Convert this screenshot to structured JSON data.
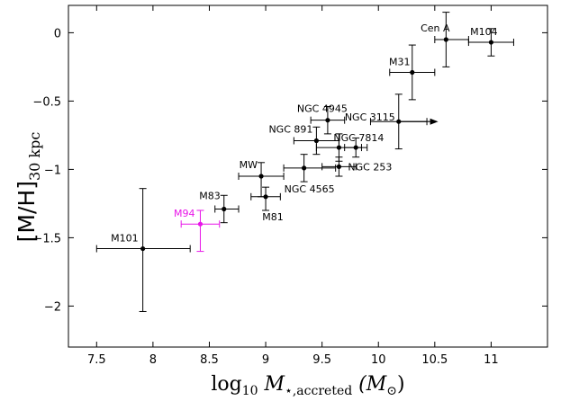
{
  "chart_data": {
    "type": "scatter",
    "title": "",
    "xlabel": {
      "main": "log",
      "sub": "10",
      "mid": " M",
      "star_sub": "⋆,accreted",
      "unit": " (M",
      "unit_sub": "⊙",
      "close": ")"
    },
    "ylabel": {
      "main": "[M/H]",
      "sub": "30 kpc"
    },
    "xlim": [
      7.25,
      11.5
    ],
    "ylim": [
      -2.3,
      0.2
    ],
    "xticks": [
      7.5,
      8,
      8.5,
      9,
      9.5,
      10,
      10.5,
      11
    ],
    "xtick_labels": [
      "7.5",
      "8",
      "8.5",
      "9",
      "9.5",
      "10",
      "10.5",
      "11"
    ],
    "yticks": [
      0,
      -0.5,
      -1,
      -1.5,
      -2
    ],
    "ytick_labels": [
      "0",
      "−0.5",
      "−1",
      "−1.5",
      "−2"
    ],
    "colors": {
      "default": "#000000",
      "highlight": "#e815e8"
    },
    "points": [
      {
        "name": "M101",
        "x": 7.91,
        "y": -1.58,
        "xerr": [
          0.41,
          0.42
        ],
        "yerr": [
          0.46,
          0.44
        ],
        "color": "#000000",
        "label_anchor": "end",
        "label_dx": -5,
        "label_dy": -8
      },
      {
        "name": "M94",
        "x": 8.42,
        "y": -1.4,
        "xerr": [
          0.17,
          0.17
        ],
        "yerr": [
          0.2,
          0.1
        ],
        "color": "#e815e8",
        "label_anchor": "end",
        "label_dx": -6,
        "label_dy": -8
      },
      {
        "name": "M83",
        "x": 8.63,
        "y": -1.29,
        "xerr": [
          0.08,
          0.13
        ],
        "yerr": [
          0.1,
          0.1
        ],
        "color": "#000000",
        "label_anchor": "end",
        "label_dx": -4,
        "label_dy": -11
      },
      {
        "name": "MW",
        "x": 8.96,
        "y": -1.05,
        "xerr": [
          0.2,
          0.2
        ],
        "yerr": [
          0.15,
          0.1
        ],
        "color": "#000000",
        "label_anchor": "end",
        "label_dx": -4,
        "label_dy": -9
      },
      {
        "name": "M81",
        "x": 9.0,
        "y": -1.2,
        "xerr": [
          0.13,
          0.13
        ],
        "yerr": [
          0.1,
          0.07
        ],
        "color": "#000000",
        "label_anchor": "middle",
        "label_dx": 8,
        "label_dy": 26
      },
      {
        "name": "NGC 4565",
        "x": 9.34,
        "y": -0.99,
        "xerr": [
          0.18,
          0.28
        ],
        "yerr": [
          0.1,
          0.1
        ],
        "color": "#000000",
        "label_anchor": "middle",
        "label_dx": 6,
        "label_dy": 27
      },
      {
        "name": "NGC 891",
        "x": 9.45,
        "y": -0.79,
        "xerr": [
          0.2,
          0.2
        ],
        "yerr": [
          0.1,
          0.1
        ],
        "color": "#000000",
        "label_anchor": "end",
        "label_dx": -4,
        "label_dy": -9
      },
      {
        "name": "NGC 4945",
        "x": 9.55,
        "y": -0.64,
        "xerr": [
          0.15,
          0.15
        ],
        "yerr": [
          0.1,
          0.1
        ],
        "color": "#000000",
        "label_anchor": "middle",
        "label_dx": -6,
        "label_dy": -9
      },
      {
        "name": "NGC 253",
        "x": 9.65,
        "y": -0.98,
        "xerr": [
          0.15,
          0.15
        ],
        "yerr": [
          0.07,
          0.07
        ],
        "color": "#000000",
        "label_anchor": "start",
        "label_dx": 10,
        "label_dy": 4
      },
      {
        "name": "NGC 7814",
        "x": 9.65,
        "y": -0.84,
        "xerr": [
          0.2,
          0.2
        ],
        "yerr": [
          0.1,
          0.1
        ],
        "color": "#000000",
        "label_anchor": "start",
        "label_dx": -6,
        "label_dy": -7
      },
      {
        "name": "NGC 7814b",
        "x": 9.8,
        "y": -0.84,
        "xerr": [
          0.1,
          0.1
        ],
        "yerr": [
          0.07,
          0.07
        ],
        "color": "#000000",
        "label_anchor": "none"
      },
      {
        "name": "NGC 3115",
        "x": 10.18,
        "y": -0.65,
        "xerr": [
          0.25,
          0.25
        ],
        "yerr": [
          0.2,
          0.2
        ],
        "color": "#000000",
        "label_anchor": "end",
        "label_dx": -4,
        "label_dy": -1,
        "arrow_dx": 0.35
      },
      {
        "name": "M31",
        "x": 10.3,
        "y": -0.29,
        "xerr": [
          0.2,
          0.2
        ],
        "yerr": [
          0.2,
          0.2
        ],
        "color": "#000000",
        "label_anchor": "middle",
        "label_dx": -14,
        "label_dy": -8
      },
      {
        "name": "Cen A",
        "x": 10.6,
        "y": -0.05,
        "xerr": [
          0.1,
          0.2
        ],
        "yerr": [
          0.2,
          0.2
        ],
        "color": "#000000",
        "label_anchor": "middle",
        "label_dx": -12,
        "label_dy": -9
      },
      {
        "name": "M104",
        "x": 11.0,
        "y": -0.07,
        "xerr": [
          0.2,
          0.2
        ],
        "yerr": [
          0.1,
          0.1
        ],
        "color": "#000000",
        "label_anchor": "middle",
        "label_dx": -8,
        "label_dy": -8
      }
    ]
  }
}
